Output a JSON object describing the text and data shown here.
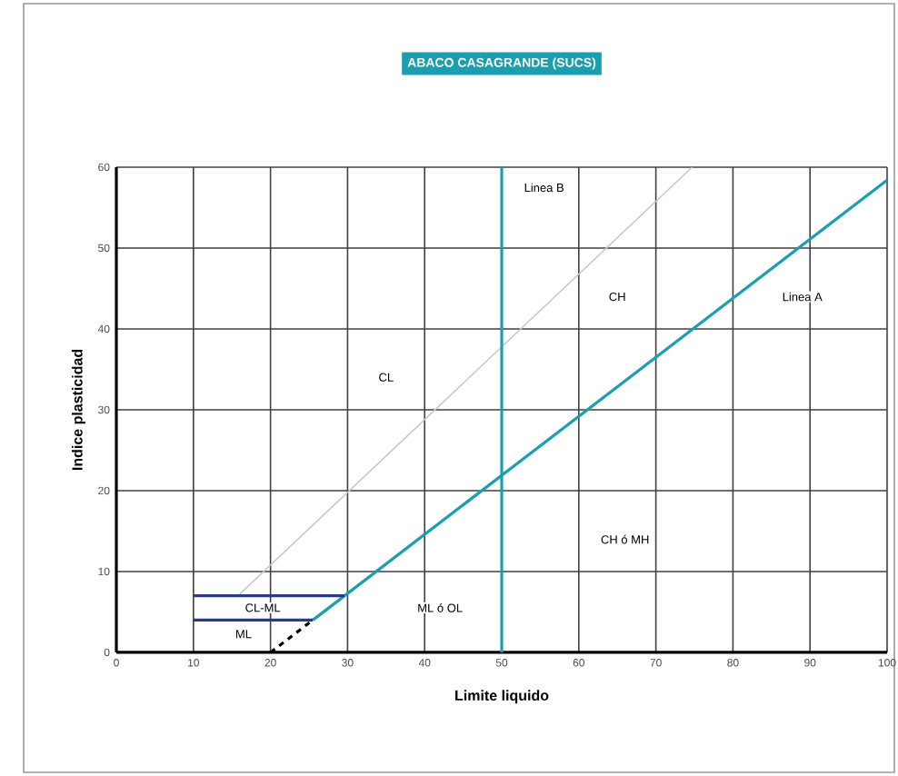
{
  "chart_data": {
    "type": "line",
    "title": "ABACO CASAGRANDE (SUCS)",
    "xlabel": "Limite liquido",
    "ylabel": "Indice plasticidad",
    "xlim": [
      0,
      100
    ],
    "ylim": [
      0,
      60
    ],
    "xticks": [
      0,
      10,
      20,
      30,
      40,
      50,
      60,
      70,
      80,
      90,
      100
    ],
    "yticks": [
      0,
      10,
      20,
      30,
      40,
      50,
      60
    ],
    "grid": true,
    "marker": "none",
    "series": [
      {
        "color": "#c8c8c8",
        "line_style": "solid",
        "x": [
          16,
          74.7
        ],
        "values": [
          7.2,
          60
        ]
      },
      {
        "color": "#1a9fb0",
        "line_style": "solid",
        "x": [
          25.5,
          100
        ],
        "values": [
          4,
          58.4
        ]
      },
      {
        "color": "#000000",
        "line_style": "dashed",
        "x": [
          20,
          25.5
        ],
        "values": [
          0,
          4
        ]
      },
      {
        "color": "#2a3a8a",
        "line_style": "solid",
        "x": [
          10,
          29.6
        ],
        "values": [
          7,
          7
        ]
      },
      {
        "color": "#2a3a8a",
        "line_style": "solid",
        "x": [
          10,
          25.5
        ],
        "values": [
          4,
          4
        ]
      }
    ],
    "ref_lines": [
      {
        "axis": "x",
        "value": 50,
        "color": "#1a9fb0"
      }
    ],
    "annotations": [
      "Linea B",
      "Linea A",
      "CL",
      "CH",
      "CH ó MH",
      "ML ó OL",
      "CL-ML",
      "ML"
    ]
  }
}
